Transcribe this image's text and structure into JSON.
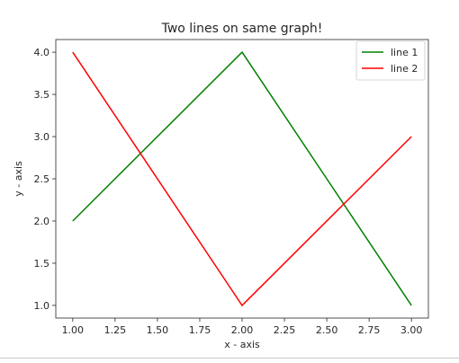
{
  "chart_data": {
    "type": "line",
    "title": "Two lines on same graph!",
    "xlabel": "x - axis",
    "ylabel": "y - axis",
    "xlim": [
      0.9,
      3.1
    ],
    "ylim": [
      0.85,
      4.15
    ],
    "xticks": [
      "1.00",
      "1.25",
      "1.50",
      "1.75",
      "2.00",
      "2.25",
      "2.50",
      "2.75",
      "3.00"
    ],
    "yticks": [
      "1.0",
      "1.5",
      "2.0",
      "2.5",
      "3.0",
      "3.5",
      "4.0"
    ],
    "grid": false,
    "legend_position": "top-right",
    "series": [
      {
        "name": "line 1",
        "color": "#008000",
        "x": [
          1,
          2,
          3
        ],
        "y": [
          2,
          4,
          1
        ]
      },
      {
        "name": "line 2",
        "color": "#ff0000",
        "x": [
          1,
          2,
          3
        ],
        "y": [
          4,
          1,
          3
        ]
      }
    ]
  }
}
